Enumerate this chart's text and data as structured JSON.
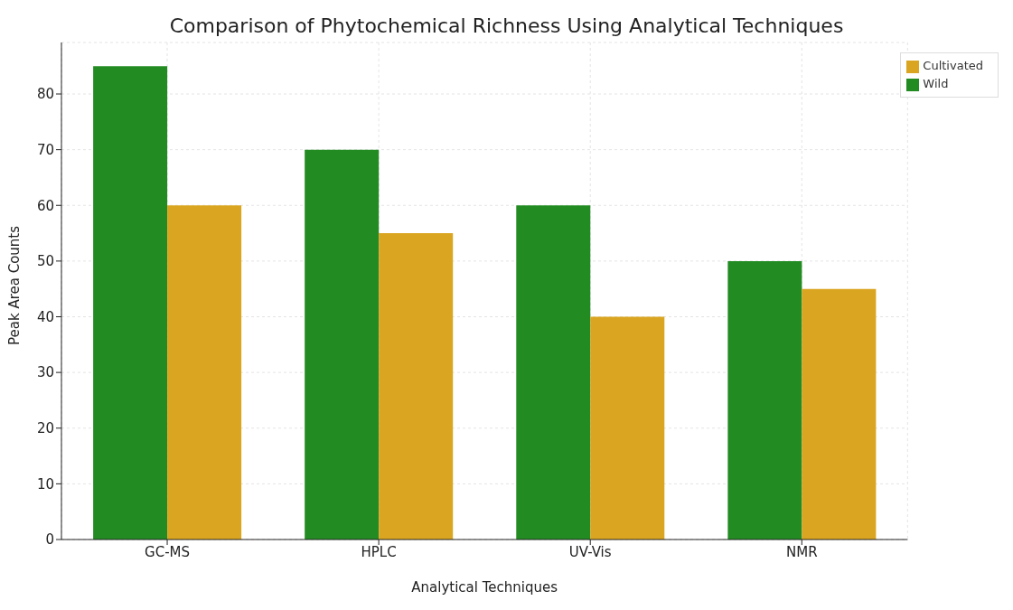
{
  "chart_data": {
    "type": "bar",
    "title": "Comparison of Phytochemical Richness Using Analytical Techniques",
    "xlabel": "Analytical Techniques",
    "ylabel": "Peak Area Counts",
    "categories": [
      "GC-MS",
      "HPLC",
      "UV-Vis",
      "NMR"
    ],
    "series": [
      {
        "name": "Wild",
        "color": "#228b22",
        "values": [
          85,
          70,
          60,
          50
        ]
      },
      {
        "name": "Cultivated",
        "color": "#daa520",
        "values": [
          60,
          55,
          40,
          45
        ]
      }
    ],
    "ylim": [
      0,
      89.25
    ],
    "yticks": [
      0,
      10,
      20,
      30,
      40,
      50,
      60,
      70,
      80
    ],
    "grid": true,
    "legend": "top right"
  }
}
